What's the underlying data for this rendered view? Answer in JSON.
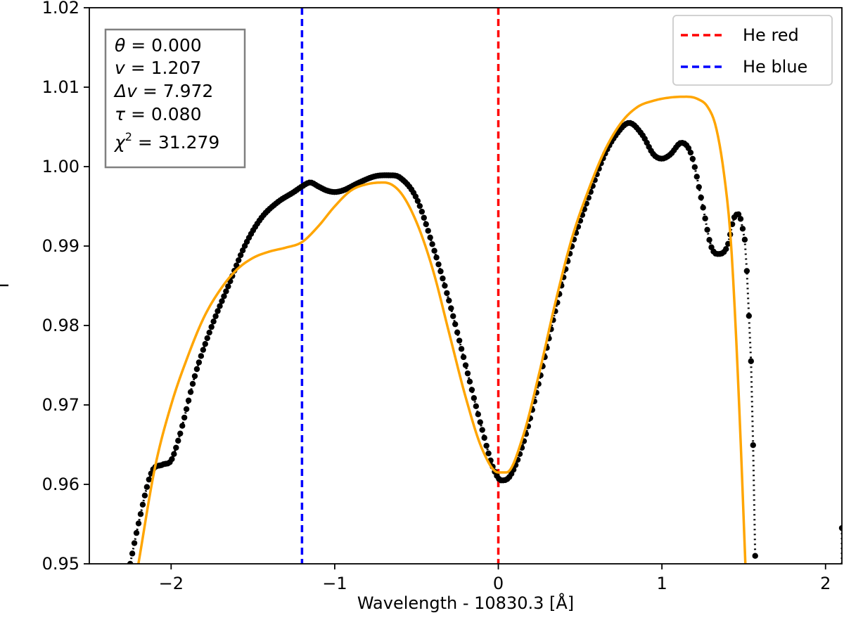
{
  "chart_data": {
    "type": "line",
    "xlabel": "Wavelength - 10830.3 [Å]",
    "ylabel": "I",
    "xlim": [
      -2.5,
      2.1
    ],
    "ylim": [
      0.95,
      1.02
    ],
    "xticks": [
      -2,
      -1,
      0,
      1,
      2
    ],
    "xtick_labels": [
      "−2",
      "−1",
      "0",
      "1",
      "2"
    ],
    "yticks": [
      0.95,
      0.96,
      0.97,
      0.98,
      0.99,
      1.0,
      1.01,
      1.02
    ],
    "ytick_labels": [
      "0.95",
      "0.96",
      "0.97",
      "0.98",
      "0.99",
      "1.00",
      "1.01",
      "1.02"
    ],
    "grid": false,
    "legend": {
      "position": "top-right",
      "entries": [
        {
          "label": "He red",
          "color": "#ff0000",
          "style": "dashed"
        },
        {
          "label": "He blue",
          "color": "#0000ff",
          "style": "dashed"
        }
      ]
    },
    "vlines": [
      {
        "name": "He red",
        "x": 0.0,
        "color": "#ff0000"
      },
      {
        "name": "He blue",
        "x": -1.2,
        "color": "#0000ff"
      }
    ],
    "params": {
      "theta": {
        "symbol": "θ",
        "value": "0.000"
      },
      "v": {
        "symbol": "v",
        "value": "1.207"
      },
      "dv": {
        "symbol": "Δv",
        "value": "7.972"
      },
      "tau": {
        "symbol": "τ",
        "value": "0.080"
      },
      "chi2": {
        "symbol": "χ",
        "sup": "2",
        "value": "31.279"
      }
    },
    "series": [
      {
        "name": "observed",
        "color": "#000000",
        "style": "dotted-markers",
        "anchors": [
          [
            -2.25,
            0.95
          ],
          [
            -2.2,
            0.955
          ],
          [
            -2.12,
            0.9615
          ],
          [
            -2.05,
            0.9625
          ],
          [
            -2.0,
            0.963
          ],
          [
            -1.95,
            0.966
          ],
          [
            -1.85,
            0.974
          ],
          [
            -1.75,
            0.98
          ],
          [
            -1.65,
            0.985
          ],
          [
            -1.55,
            0.99
          ],
          [
            -1.45,
            0.9935
          ],
          [
            -1.35,
            0.9955
          ],
          [
            -1.25,
            0.9968
          ],
          [
            -1.2,
            0.9975
          ],
          [
            -1.15,
            0.998
          ],
          [
            -1.1,
            0.9975
          ],
          [
            -1.05,
            0.997
          ],
          [
            -1.0,
            0.9968
          ],
          [
            -0.95,
            0.997
          ],
          [
            -0.85,
            0.998
          ],
          [
            -0.75,
            0.9988
          ],
          [
            -0.65,
            0.9989
          ],
          [
            -0.6,
            0.9986
          ],
          [
            -0.5,
            0.996
          ],
          [
            -0.4,
            0.99
          ],
          [
            -0.3,
            0.983
          ],
          [
            -0.2,
            0.975
          ],
          [
            -0.1,
            0.967
          ],
          [
            -0.03,
            0.962
          ],
          [
            0.02,
            0.9605
          ],
          [
            0.07,
            0.961
          ],
          [
            0.15,
            0.965
          ],
          [
            0.25,
            0.973
          ],
          [
            0.35,
            0.982
          ],
          [
            0.45,
            0.99
          ],
          [
            0.55,
            0.996
          ],
          [
            0.65,
            1.0015
          ],
          [
            0.72,
            1.004
          ],
          [
            0.8,
            1.0055
          ],
          [
            0.88,
            1.004
          ],
          [
            0.95,
            1.0015
          ],
          [
            1.0,
            1.001
          ],
          [
            1.05,
            1.0015
          ],
          [
            1.12,
            1.003
          ],
          [
            1.18,
            1.0015
          ],
          [
            1.25,
            0.995
          ],
          [
            1.3,
            0.99
          ],
          [
            1.34,
            0.989
          ],
          [
            1.4,
            0.99
          ],
          [
            1.44,
            0.9935
          ],
          [
            1.47,
            0.994
          ],
          [
            1.49,
            0.9925
          ],
          [
            1.51,
            0.99
          ],
          [
            1.53,
            0.982
          ],
          [
            1.55,
            0.972
          ],
          [
            1.56,
            0.962
          ],
          [
            1.57,
            0.951
          ]
        ],
        "tail_point": [
          2.1,
          0.9545
        ]
      },
      {
        "name": "fit",
        "color": "#ffa500",
        "style": "solid",
        "anchors": [
          [
            -2.2,
            0.95
          ],
          [
            -2.1,
            0.962
          ],
          [
            -2.0,
            0.97
          ],
          [
            -1.9,
            0.976
          ],
          [
            -1.8,
            0.981
          ],
          [
            -1.7,
            0.9845
          ],
          [
            -1.6,
            0.987
          ],
          [
            -1.5,
            0.9885
          ],
          [
            -1.4,
            0.9893
          ],
          [
            -1.3,
            0.9898
          ],
          [
            -1.2,
            0.9905
          ],
          [
            -1.1,
            0.9925
          ],
          [
            -1.0,
            0.995
          ],
          [
            -0.9,
            0.997
          ],
          [
            -0.8,
            0.9978
          ],
          [
            -0.7,
            0.998
          ],
          [
            -0.6,
            0.9968
          ],
          [
            -0.5,
            0.993
          ],
          [
            -0.4,
            0.987
          ],
          [
            -0.3,
            0.979
          ],
          [
            -0.2,
            0.971
          ],
          [
            -0.1,
            0.9645
          ],
          [
            0.0,
            0.9615
          ],
          [
            0.05,
            0.9615
          ],
          [
            0.15,
            0.966
          ],
          [
            0.25,
            0.974
          ],
          [
            0.35,
            0.983
          ],
          [
            0.45,
            0.991
          ],
          [
            0.55,
            0.997
          ],
          [
            0.65,
            1.002
          ],
          [
            0.75,
            1.0055
          ],
          [
            0.85,
            1.0075
          ],
          [
            0.95,
            1.0083
          ],
          [
            1.05,
            1.0087
          ],
          [
            1.15,
            1.0088
          ],
          [
            1.22,
            1.0085
          ],
          [
            1.28,
            1.0075
          ],
          [
            1.33,
            1.005
          ],
          [
            1.38,
            0.999
          ],
          [
            1.42,
            0.991
          ],
          [
            1.45,
            0.98
          ],
          [
            1.48,
            0.966
          ],
          [
            1.51,
            0.95
          ]
        ]
      }
    ]
  }
}
